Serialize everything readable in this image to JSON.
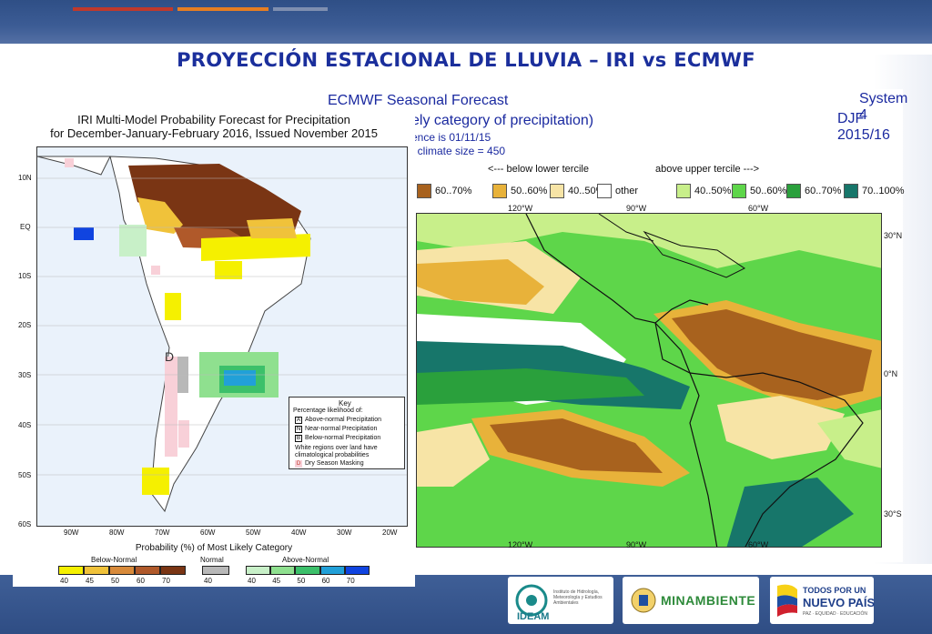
{
  "slide": {
    "title": "PROYECCIÓN ESTACIONAL DE LLUVIA – IRI vs ECMWF"
  },
  "ecmwf": {
    "header_left": "ECMWF Seasonal Forecast",
    "header_right_line1": "System 4",
    "header_right_line2": "DJF 2015/16",
    "subtitle": "ely category of precipitation)",
    "info_line1": "ence is 01/11/15",
    "info_line2": ", climate size = 450",
    "legend_below": "<--- below lower tercile",
    "legend_above": "above upper tercile --->",
    "legend_items": [
      {
        "label": "60..70%",
        "color": "#a8621e"
      },
      {
        "label": "50..60%",
        "color": "#e8b23a"
      },
      {
        "label": "40..50%",
        "color": "#f7e4a6"
      },
      {
        "label": "other",
        "color": "#ffffff"
      },
      {
        "label": "40..50%",
        "color": "#c8ef8a"
      },
      {
        "label": "50..60%",
        "color": "#5ed64a"
      },
      {
        "label": "60..70%",
        "color": "#2aa03c"
      },
      {
        "label": "70..100%",
        "color": "#17766a"
      }
    ],
    "lon_labels": [
      "120°W",
      "90°W",
      "60°W"
    ],
    "lat_labels": [
      "30°N",
      "0°N",
      "30°S"
    ]
  },
  "iri": {
    "title_line1": "IRI Multi-Model Probability Forecast for Precipitation",
    "title_line2": "for December-January-February 2016, Issued November 2015",
    "lat_labels": [
      "10N",
      "EQ",
      "10S",
      "20S",
      "30S",
      "40S",
      "50S",
      "60S"
    ],
    "lon_labels": [
      "90W",
      "80W",
      "70W",
      "60W",
      "50W",
      "40W",
      "30W",
      "20W"
    ],
    "key": {
      "title": "Key",
      "subtitle": "Percentage likelihood of:",
      "items": [
        {
          "letter": "A",
          "text": "Above-normal Precipitation"
        },
        {
          "letter": "N",
          "text": "Near-normal Precipitation"
        },
        {
          "letter": "B",
          "text": "Below-normal Precipitation"
        }
      ],
      "note_line1": "White regions over land have",
      "note_line2": "climatological probabilities",
      "dry_letter": "D",
      "dry_text": "Dry Season Masking"
    },
    "dry_marker": "D",
    "prob_title": "Probability (%) of Most Likely Category",
    "categories": {
      "below": "Below-Normal",
      "normal": "Normal",
      "above": "Above-Normal"
    },
    "below_scale": {
      "colors": [
        "#f5f000",
        "#f0c23a",
        "#d88a3a",
        "#b0592a",
        "#7a3514"
      ],
      "ticks": [
        "40",
        "45",
        "50",
        "60",
        "70"
      ]
    },
    "normal_scale": {
      "colors": [
        "#b8b8b8"
      ],
      "ticks": [
        "40"
      ]
    },
    "above_scale": {
      "colors": [
        "#c8f0c8",
        "#8fe08f",
        "#3cc06a",
        "#21a0d8",
        "#1044e0"
      ],
      "ticks": [
        "40",
        "45",
        "50",
        "60",
        "70"
      ]
    }
  },
  "logos": {
    "ideam_name": "IDEAM",
    "ideam_caption": "Instituto de Hidrología, Meteorología y Estudios Ambientales",
    "minambiente": "MINAMBIENTE",
    "gov_line1": "TODOS POR UN",
    "gov_line2": "NUEVO PAÍS",
    "gov_line3": "PAZ · EQUIDAD · EDUCACIÓN"
  }
}
